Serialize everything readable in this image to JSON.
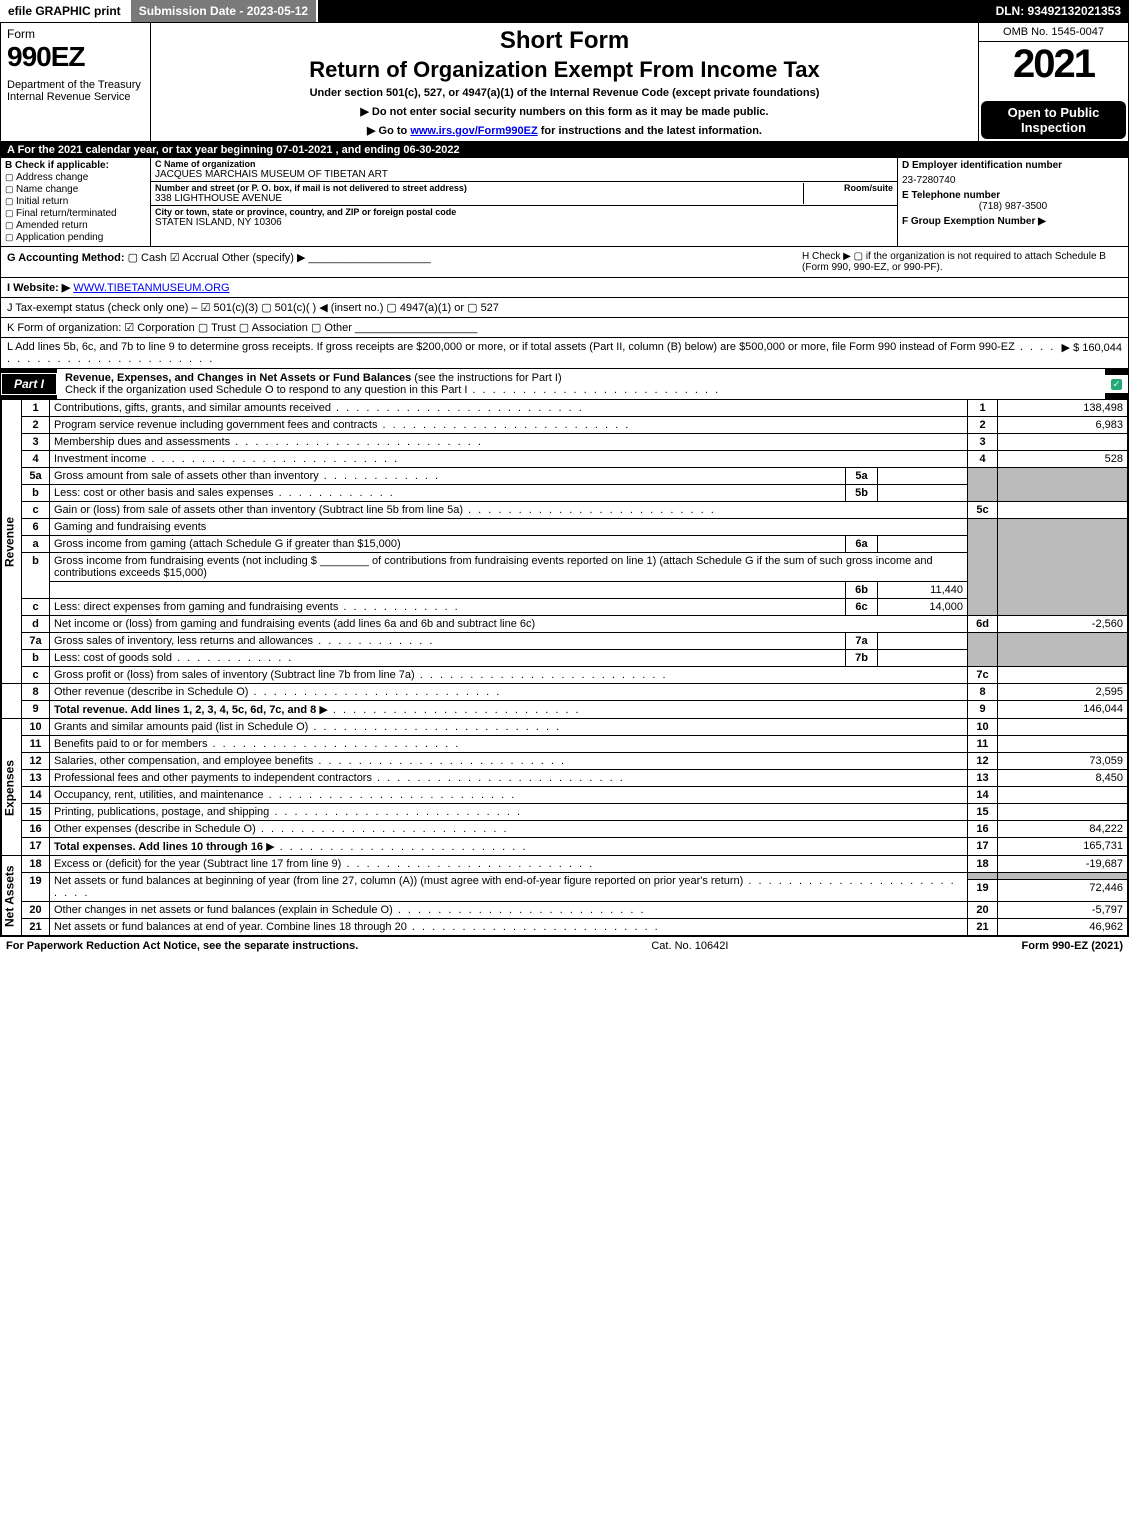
{
  "topbar": {
    "efile": "efile GRAPHIC print",
    "submission": "Submission Date - 2023-05-12",
    "dln": "DLN: 93492132021353"
  },
  "header": {
    "form_word": "Form",
    "form_no": "990EZ",
    "dept": "Department of the Treasury\nInternal Revenue Service",
    "short": "Short Form",
    "title": "Return of Organization Exempt From Income Tax",
    "sub": "Under section 501(c), 527, or 4947(a)(1) of the Internal Revenue Code (except private foundations)",
    "line1": "▶ Do not enter social security numbers on this form as it may be made public.",
    "line2_pre": "▶ Go to ",
    "line2_link": "www.irs.gov/Form990EZ",
    "line2_post": " for instructions and the latest information.",
    "omb": "OMB No. 1545-0047",
    "year": "2021",
    "open": "Open to Public Inspection"
  },
  "rowA": "A  For the 2021 calendar year, or tax year beginning 07-01-2021 , and ending 06-30-2022",
  "B": {
    "hdr": "B  Check if applicable:",
    "items": [
      "Address change",
      "Name change",
      "Initial return",
      "Final return/terminated",
      "Amended return",
      "Application pending"
    ]
  },
  "C": {
    "name_lbl": "C Name of organization",
    "name": "JACQUES MARCHAIS MUSEUM OF TIBETAN ART",
    "addr_lbl": "Number and street (or P. O. box, if mail is not delivered to street address)",
    "addr": "338 LIGHTHOUSE AVENUE",
    "room_lbl": "Room/suite",
    "city_lbl": "City or town, state or province, country, and ZIP or foreign postal code",
    "city": "STATEN ISLAND, NY  10306"
  },
  "D": {
    "ein_lbl": "D Employer identification number",
    "ein": "23-7280740",
    "tel_lbl": "E Telephone number",
    "tel": "(718) 987-3500",
    "grp_lbl": "F Group Exemption Number  ▶"
  },
  "G": {
    "label": "G Accounting Method:",
    "opts": "▢ Cash   ☑ Accrual   Other (specify) ▶",
    "H": "H   Check ▶  ▢  if the organization is not required to attach Schedule B (Form 990, 990-EZ, or 990-PF)."
  },
  "I": {
    "label": "I Website: ▶",
    "url": "WWW.TIBETANMUSEUM.ORG"
  },
  "J": "J Tax-exempt status (check only one) – ☑ 501(c)(3)  ▢ 501(c)(  ) ◀ (insert no.)  ▢ 4947(a)(1) or  ▢ 527",
  "K": "K Form of organization:   ☑ Corporation   ▢ Trust   ▢ Association   ▢ Other",
  "L": {
    "text": "L Add lines 5b, 6c, and 7b to line 9 to determine gross receipts. If gross receipts are $200,000 or more, or if total assets (Part II, column (B) below) are $500,000 or more, file Form 990 instead of Form 990-EZ",
    "amount": "▶ $ 160,044"
  },
  "part1": {
    "tab": "Part I",
    "title": "Revenue, Expenses, and Changes in Net Assets or Fund Balances",
    "title_paren": " (see the instructions for Part I)",
    "sub": "Check if the organization used Schedule O to respond to any question in this Part I"
  },
  "vlabels": {
    "rev": "Revenue",
    "exp": "Expenses",
    "na": "Net Assets"
  },
  "lines": {
    "l1": {
      "d": "Contributions, gifts, grants, and similar amounts received",
      "v": "138,498"
    },
    "l2": {
      "d": "Program service revenue including government fees and contracts",
      "v": "6,983"
    },
    "l3": {
      "d": "Membership dues and assessments",
      "v": ""
    },
    "l4": {
      "d": "Investment income",
      "v": "528"
    },
    "l5a": {
      "d": "Gross amount from sale of assets other than inventory",
      "sv": ""
    },
    "l5b": {
      "d": "Less: cost or other basis and sales expenses",
      "sv": ""
    },
    "l5c": {
      "d": "Gain or (loss) from sale of assets other than inventory (Subtract line 5b from line 5a)",
      "v": ""
    },
    "l6": {
      "d": "Gaming and fundraising events"
    },
    "l6a": {
      "d": "Gross income from gaming (attach Schedule G if greater than $15,000)",
      "sv": ""
    },
    "l6b": {
      "d1": "Gross income from fundraising events (not including $",
      "d2": "of contributions from fundraising events reported on line 1) (attach Schedule G if the sum of such gross income and contributions exceeds $15,000)",
      "sv": "11,440"
    },
    "l6c": {
      "d": "Less: direct expenses from gaming and fundraising events",
      "sv": "14,000"
    },
    "l6d": {
      "d": "Net income or (loss) from gaming and fundraising events (add lines 6a and 6b and subtract line 6c)",
      "v": "-2,560"
    },
    "l7a": {
      "d": "Gross sales of inventory, less returns and allowances",
      "sv": ""
    },
    "l7b": {
      "d": "Less: cost of goods sold",
      "sv": ""
    },
    "l7c": {
      "d": "Gross profit or (loss) from sales of inventory (Subtract line 7b from line 7a)",
      "v": ""
    },
    "l8": {
      "d": "Other revenue (describe in Schedule O)",
      "v": "2,595"
    },
    "l9": {
      "d": "Total revenue. Add lines 1, 2, 3, 4, 5c, 6d, 7c, and 8",
      "v": "146,044"
    },
    "l10": {
      "d": "Grants and similar amounts paid (list in Schedule O)",
      "v": ""
    },
    "l11": {
      "d": "Benefits paid to or for members",
      "v": ""
    },
    "l12": {
      "d": "Salaries, other compensation, and employee benefits",
      "v": "73,059"
    },
    "l13": {
      "d": "Professional fees and other payments to independent contractors",
      "v": "8,450"
    },
    "l14": {
      "d": "Occupancy, rent, utilities, and maintenance",
      "v": ""
    },
    "l15": {
      "d": "Printing, publications, postage, and shipping",
      "v": ""
    },
    "l16": {
      "d": "Other expenses (describe in Schedule O)",
      "v": "84,222"
    },
    "l17": {
      "d": "Total expenses. Add lines 10 through 16",
      "v": "165,731"
    },
    "l18": {
      "d": "Excess or (deficit) for the year (Subtract line 17 from line 9)",
      "v": "-19,687"
    },
    "l19": {
      "d": "Net assets or fund balances at beginning of year (from line 27, column (A)) (must agree with end-of-year figure reported on prior year's return)",
      "v": "72,446"
    },
    "l20": {
      "d": "Other changes in net assets or fund balances (explain in Schedule O)",
      "v": "-5,797"
    },
    "l21": {
      "d": "Net assets or fund balances at end of year. Combine lines 18 through 20",
      "v": "46,962"
    }
  },
  "footer": {
    "left": "For Paperwork Reduction Act Notice, see the separate instructions.",
    "mid": "Cat. No. 10642I",
    "right": "Form 990-EZ (2021)"
  }
}
